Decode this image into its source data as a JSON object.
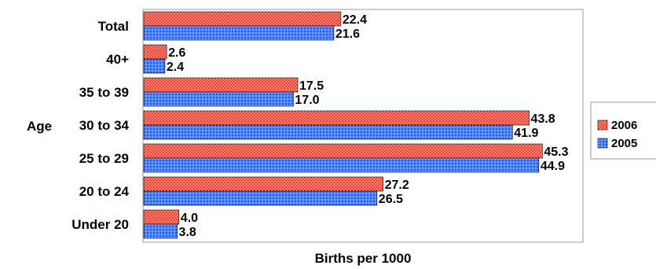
{
  "chart_data": {
    "type": "bar",
    "orientation": "horizontal",
    "categories": [
      "Total",
      "40+",
      "35 to 39",
      "30 to 34",
      "25 to 29",
      "20 to 24",
      "Under 20"
    ],
    "series": [
      {
        "name": "2006",
        "values": [
          22.4,
          2.6,
          17.5,
          43.8,
          45.3,
          27.2,
          4.0
        ],
        "color": "#ff2a1a"
      },
      {
        "name": "2005",
        "values": [
          21.6,
          2.4,
          17.0,
          41.9,
          44.9,
          26.5,
          3.8
        ],
        "color": "#1a5cff"
      }
    ],
    "value_labels": [
      [
        "22.4",
        "2.6",
        "17.5",
        "43.8",
        "45.3",
        "27.2",
        "4.0"
      ],
      [
        "21.6",
        "2.4",
        "17.0",
        "41.9",
        "44.9",
        "26.5",
        "3.8"
      ]
    ],
    "xlabel": "Births per 1000",
    "ylabel": "Age",
    "xlim": [
      0,
      50
    ],
    "grid": false,
    "legend": "right"
  }
}
